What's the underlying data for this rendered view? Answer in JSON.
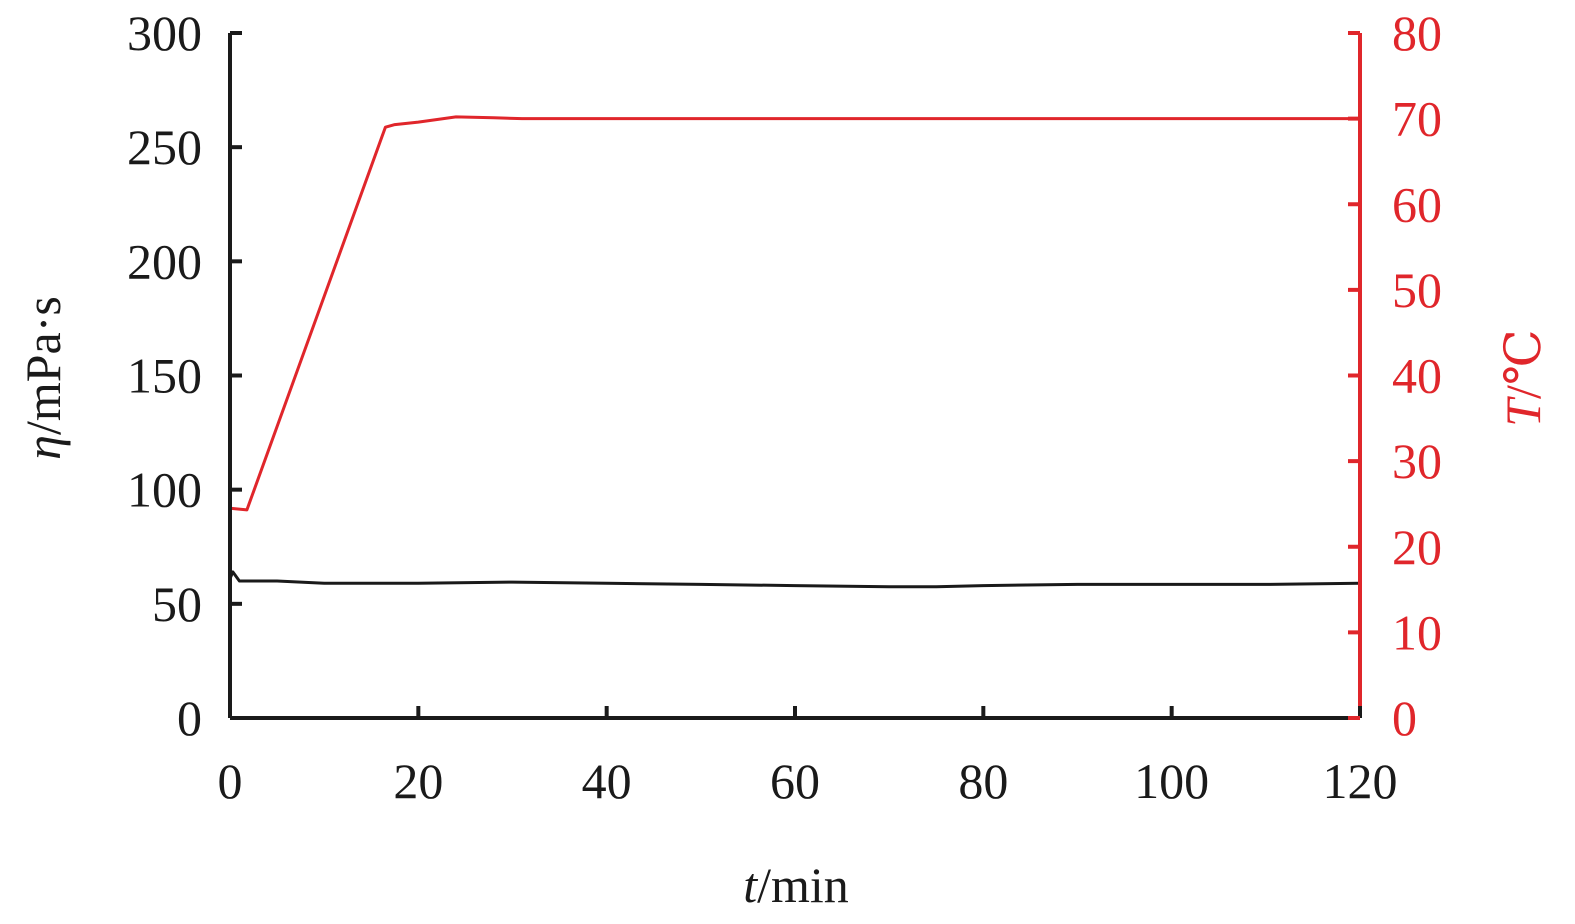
{
  "chart_data": {
    "type": "line",
    "title": "",
    "xlabel": {
      "symbol": "t",
      "unit": "/min"
    },
    "ylabel_left": {
      "symbol": "η",
      "unit": "/mPa·s"
    },
    "ylabel_right": {
      "symbol": "T",
      "unit": "/℃"
    },
    "xlim": [
      0,
      120
    ],
    "ylim_left": [
      0,
      300
    ],
    "ylim_right": [
      0,
      80
    ],
    "x_ticks": [
      0,
      20,
      40,
      60,
      80,
      100,
      120
    ],
    "y_left_ticks": [
      0,
      50,
      100,
      150,
      200,
      250,
      300
    ],
    "y_right_ticks": [
      0,
      10,
      20,
      30,
      40,
      50,
      60,
      70,
      80
    ],
    "grid": false,
    "colors": {
      "viscosity": "#1a1a1a",
      "temperature": "#e0262b"
    },
    "series": [
      {
        "axis": "left",
        "x": [
          0,
          0.3,
          1,
          5,
          10,
          20,
          30,
          40,
          50,
          60,
          70,
          75,
          80,
          90,
          100,
          110,
          120
        ],
        "y": [
          61,
          64,
          60,
          60,
          59,
          59,
          59.5,
          59,
          58.5,
          58,
          57.5,
          57.5,
          58,
          58.5,
          58.5,
          58.5,
          59
        ]
      },
      {
        "axis": "right",
        "x": [
          0,
          1.8,
          16.5,
          17.5,
          20,
          24,
          28,
          31,
          40,
          60,
          80,
          100,
          120
        ],
        "y": [
          24.5,
          24.3,
          69,
          69.3,
          69.6,
          70.2,
          70.1,
          70,
          70,
          70,
          70,
          70,
          70
        ]
      }
    ]
  }
}
